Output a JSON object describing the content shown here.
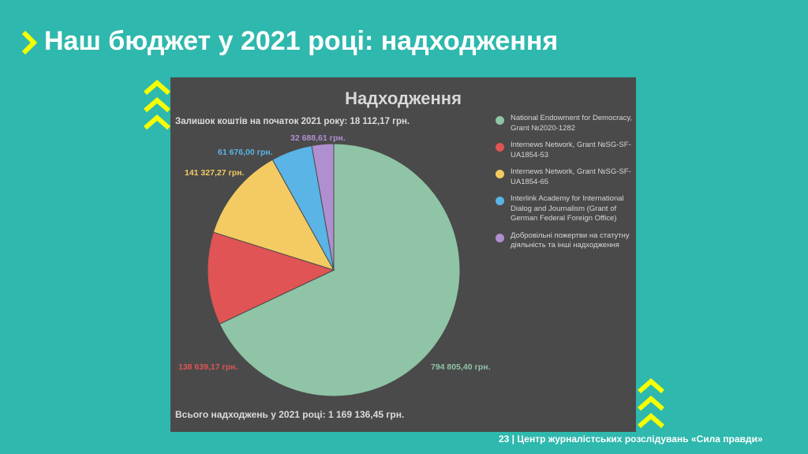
{
  "slide": {
    "title": "Наш бюджет у 2021 році: надходження",
    "footer": "23 | Центр журналістських розслідувань «Сила правди»",
    "accent": "#f5ff00",
    "background": "#2fb8ad"
  },
  "chart_data": {
    "type": "pie",
    "title": "Надходження",
    "subtitle": "Залишок коштів на початок 2021 року: 18 112,17 грн.",
    "total_label": "Всього надходжень у 2021 році: 1 169 136,45 грн.",
    "legend_position": "right",
    "series": [
      {
        "name": "National Endowment for Democracy, Grant №2020-1282",
        "value": 794805.4,
        "label": "794 805,40 грн.",
        "color": "#8fc4a6"
      },
      {
        "name": "Internews Network, Grant №SG-SF-UA1854-53",
        "value": 138639.17,
        "label": "138 639,17 грн.",
        "color": "#e05455"
      },
      {
        "name": "Internews Network, Grant №SG-SF-UA1854-65",
        "value": 141327.27,
        "label": "141 327,27 грн.",
        "color": "#f3cb62"
      },
      {
        "name": "Interlink Academy for International Dialog and Journalism (Grant of German Federal Foreign Office)",
        "value": 61676.0,
        "label": "61 676,00 грн.",
        "color": "#5ab4e5"
      },
      {
        "name": "Добровільні пожертви на статутну діяльність та інші надходження",
        "value": 32688.61,
        "label": "32 688,61 грн.",
        "color": "#b08fd0"
      }
    ]
  }
}
